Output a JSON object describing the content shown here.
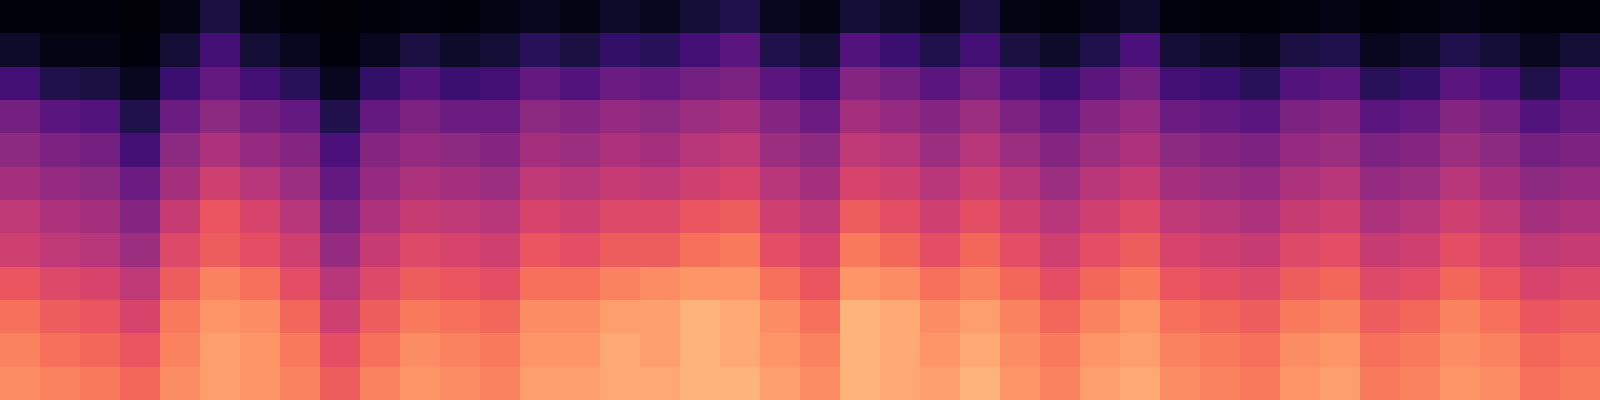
{
  "chart_data": {
    "type": "heatmap",
    "color": "magma",
    "tick_labels": false,
    "value_range": [
      0,
      100
    ],
    "cells": [
      [
        2,
        2,
        2,
        1,
        4,
        12,
        4,
        2,
        1,
        2,
        3,
        2,
        4,
        6,
        4,
        8,
        6,
        10,
        14,
        6,
        4,
        10,
        8,
        5,
        12,
        4,
        3,
        5,
        8,
        3,
        2,
        2,
        3,
        4,
        2,
        3,
        4,
        3,
        2,
        2
      ],
      [
        8,
        4,
        4,
        2,
        10,
        22,
        10,
        6,
        2,
        6,
        12,
        8,
        10,
        16,
        12,
        18,
        16,
        22,
        28,
        14,
        10,
        26,
        20,
        14,
        22,
        12,
        8,
        14,
        24,
        10,
        8,
        6,
        12,
        14,
        6,
        8,
        14,
        10,
        6,
        10
      ],
      [
        22,
        14,
        12,
        6,
        20,
        30,
        22,
        16,
        6,
        18,
        26,
        20,
        22,
        30,
        26,
        32,
        30,
        34,
        36,
        28,
        22,
        38,
        34,
        28,
        34,
        26,
        20,
        28,
        34,
        22,
        20,
        16,
        26,
        28,
        16,
        18,
        28,
        24,
        14,
        24
      ],
      [
        34,
        28,
        26,
        14,
        32,
        40,
        34,
        30,
        14,
        30,
        36,
        32,
        32,
        40,
        38,
        42,
        40,
        44,
        46,
        38,
        32,
        46,
        42,
        38,
        44,
        36,
        30,
        38,
        42,
        32,
        30,
        28,
        36,
        38,
        28,
        30,
        38,
        34,
        26,
        30
      ],
      [
        40,
        36,
        34,
        22,
        40,
        48,
        42,
        38,
        24,
        38,
        42,
        40,
        38,
        46,
        44,
        48,
        46,
        50,
        52,
        44,
        40,
        52,
        50,
        44,
        50,
        44,
        38,
        44,
        48,
        40,
        38,
        36,
        42,
        44,
        36,
        38,
        44,
        40,
        34,
        36
      ],
      [
        46,
        42,
        40,
        32,
        46,
        56,
        50,
        44,
        30,
        42,
        48,
        46,
        44,
        52,
        50,
        54,
        52,
        56,
        58,
        50,
        46,
        58,
        56,
        50,
        56,
        50,
        44,
        50,
        54,
        46,
        44,
        42,
        48,
        50,
        42,
        44,
        50,
        46,
        40,
        42
      ],
      [
        52,
        48,
        46,
        38,
        54,
        64,
        58,
        50,
        36,
        48,
        54,
        52,
        50,
        58,
        56,
        60,
        60,
        64,
        66,
        56,
        52,
        66,
        62,
        56,
        62,
        56,
        50,
        56,
        60,
        52,
        50,
        48,
        54,
        56,
        48,
        50,
        56,
        52,
        46,
        48
      ],
      [
        56,
        52,
        50,
        44,
        60,
        66,
        62,
        56,
        42,
        54,
        60,
        58,
        56,
        64,
        62,
        66,
        66,
        70,
        72,
        62,
        58,
        72,
        68,
        62,
        68,
        62,
        56,
        62,
        66,
        58,
        56,
        54,
        60,
        62,
        54,
        56,
        62,
        58,
        52,
        54
      ],
      [
        64,
        60,
        58,
        52,
        66,
        74,
        70,
        62,
        50,
        60,
        66,
        64,
        62,
        70,
        70,
        74,
        76,
        78,
        78,
        70,
        64,
        78,
        76,
        70,
        74,
        68,
        62,
        68,
        72,
        64,
        62,
        60,
        66,
        68,
        60,
        62,
        68,
        64,
        58,
        60
      ],
      [
        70,
        66,
        64,
        58,
        72,
        78,
        76,
        68,
        56,
        66,
        72,
        70,
        68,
        76,
        76,
        80,
        80,
        84,
        82,
        76,
        70,
        84,
        82,
        76,
        80,
        74,
        68,
        74,
        78,
        70,
        68,
        66,
        72,
        74,
        66,
        68,
        74,
        70,
        64,
        66
      ],
      [
        74,
        70,
        68,
        64,
        74,
        80,
        78,
        72,
        62,
        70,
        76,
        74,
        72,
        78,
        78,
        82,
        80,
        84,
        82,
        78,
        74,
        84,
        82,
        78,
        82,
        76,
        72,
        78,
        80,
        74,
        72,
        70,
        76,
        78,
        70,
        72,
        76,
        74,
        68,
        70
      ],
      [
        76,
        74,
        72,
        68,
        76,
        80,
        78,
        74,
        66,
        74,
        78,
        76,
        74,
        80,
        80,
        82,
        82,
        84,
        84,
        80,
        76,
        84,
        82,
        80,
        84,
        78,
        74,
        80,
        82,
        76,
        74,
        72,
        78,
        80,
        72,
        74,
        78,
        76,
        70,
        72
      ]
    ]
  }
}
